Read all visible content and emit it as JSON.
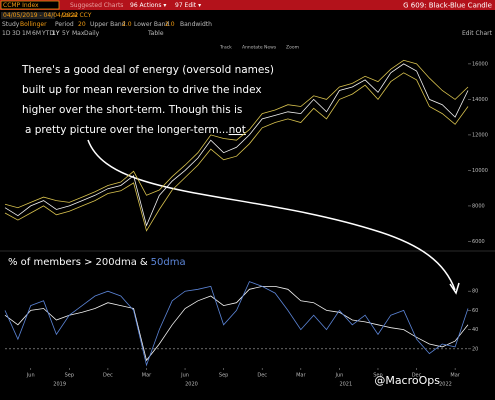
{
  "header": {
    "ticker": "CCMP Index",
    "suggested": "Suggested Charts",
    "actions": "96 Actions ▾",
    "edit": "97 Edit ▾",
    "template": "G 609: Black-Blue Candle",
    "dates": "04/05/2019 - 04/04/2022",
    "currency": "Local CCY",
    "study": "Study",
    "study_name": "Bollinger",
    "period_label": "Period",
    "period": "20",
    "upper_label": "Upper Band",
    "upper": "2.0",
    "lower_label": "Lower Band",
    "lower": "2.0",
    "bandwidth": "Bandwidth",
    "ranges": [
      "1D",
      "3D",
      "1M",
      "6M",
      "YTD",
      "1Y",
      "5Y",
      "Max"
    ],
    "frequency": "Daily",
    "table": "Table",
    "edit_chart": "Edit Chart",
    "tools": [
      "Track",
      "Annotate",
      "News",
      "Zoom"
    ]
  },
  "annotation": {
    "lines": [
      "There's a good deal of energy (oversold names)",
      "built up for mean reversion to drive the index",
      "higher over the short-term. Though this is"
    ],
    "emphasis": "not",
    "rest": "a pretty picture over the longer-term..."
  },
  "watermark": "@MacroOps",
  "chart_data": [
    {
      "type": "line",
      "ylim": [
        5800,
        16500
      ],
      "yticks": [
        6000,
        8000,
        10000,
        12000,
        14000,
        16000
      ],
      "series": [
        {
          "color": "#f2f2f2",
          "values": [
            7900,
            7450,
            8000,
            8300,
            7800,
            8000,
            8300,
            8600,
            8970,
            9150,
            9700,
            6900,
            8600,
            9400,
            10000,
            10700,
            11700,
            11000,
            11300,
            12000,
            12900,
            13100,
            13300,
            13200,
            14000,
            13300,
            14500,
            14700,
            15100,
            14400,
            15500,
            16000,
            15600,
            14000,
            13700,
            13000,
            14500
          ]
        },
        {
          "color": "#d8c24e",
          "values": [
            8100,
            7900,
            8200,
            8500,
            8300,
            8200,
            8500,
            8800,
            9150,
            9350,
            9950,
            8600,
            8900,
            9650,
            10300,
            11000,
            12000,
            11800,
            11700,
            12300,
            13200,
            13400,
            13700,
            13600,
            14200,
            14000,
            14700,
            14900,
            15300,
            15000,
            15700,
            16200,
            16000,
            15200,
            14500,
            14000,
            14700
          ]
        },
        {
          "color": "#d8c24e",
          "values": [
            7600,
            7200,
            7600,
            8000,
            7500,
            7700,
            8000,
            8300,
            8700,
            8850,
            9300,
            6600,
            7800,
            8900,
            9600,
            10300,
            11200,
            10600,
            10800,
            11500,
            12400,
            12700,
            12900,
            12700,
            13500,
            12900,
            14000,
            14300,
            14800,
            14000,
            15000,
            15500,
            15100,
            13600,
            13200,
            12600,
            13600
          ]
        }
      ]
    },
    {
      "type": "line",
      "title_prefix": "% of members >",
      "title_joiner": "&",
      "ylim": [
        0,
        100
      ],
      "yticks": [
        20,
        40,
        60,
        80
      ],
      "reference": 20,
      "categories": [
        null,
        null,
        "Jun",
        null,
        null,
        "Sep",
        null,
        null,
        "Dec",
        null,
        null,
        "Mar",
        null,
        null,
        "Jun",
        null,
        null,
        "Sep",
        null,
        null,
        "Dec",
        null,
        null,
        "Mar",
        null,
        null,
        "Jun",
        null,
        null,
        "Sep",
        null,
        null,
        "Dec",
        null,
        null,
        "Mar",
        null
      ],
      "years": [
        "2019",
        "2020",
        "2021",
        "2022"
      ],
      "series": [
        {
          "name": "200dma",
          "color": "#f2f2f2",
          "values": [
            55,
            45,
            60,
            62,
            50,
            55,
            58,
            62,
            68,
            65,
            62,
            8,
            25,
            45,
            62,
            70,
            75,
            65,
            68,
            82,
            85,
            85,
            82,
            70,
            68,
            60,
            58,
            50,
            48,
            45,
            42,
            40,
            32,
            25,
            22,
            28,
            45
          ]
        },
        {
          "name": "50dma",
          "color": "#5b84d6",
          "values": [
            60,
            30,
            65,
            70,
            35,
            55,
            65,
            75,
            80,
            75,
            60,
            3,
            40,
            70,
            80,
            82,
            85,
            45,
            60,
            90,
            85,
            78,
            60,
            40,
            55,
            40,
            60,
            45,
            55,
            35,
            55,
            60,
            30,
            15,
            25,
            22,
            62
          ]
        }
      ]
    }
  ]
}
